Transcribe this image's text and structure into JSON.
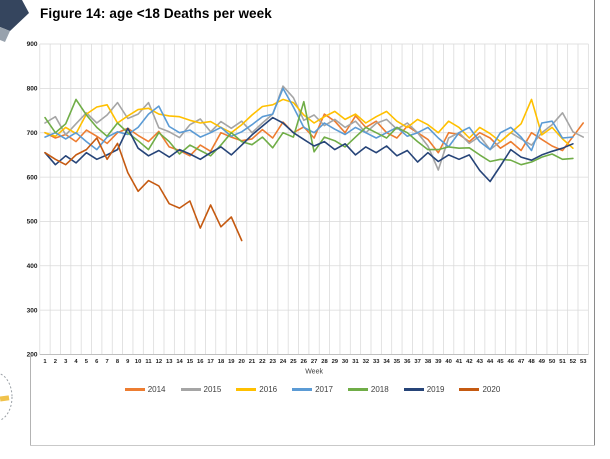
{
  "chart_data": {
    "type": "line",
    "title": "Figure 14: age <18 Deaths per week",
    "xlabel": "Week",
    "ylabel": "",
    "ylim": [
      200,
      900
    ],
    "ytick_step": 100,
    "yticks": [
      200,
      300,
      400,
      500,
      600,
      700,
      800,
      900
    ],
    "xticks": [
      1,
      2,
      3,
      4,
      5,
      6,
      7,
      8,
      9,
      10,
      11,
      12,
      13,
      14,
      15,
      16,
      17,
      18,
      19,
      20,
      21,
      22,
      23,
      24,
      25,
      26,
      27,
      28,
      29,
      30,
      31,
      32,
      33,
      34,
      35,
      36,
      37,
      38,
      39,
      40,
      41,
      42,
      43,
      44,
      45,
      46,
      47,
      48,
      49,
      50,
      51,
      52,
      53
    ],
    "grid": "both",
    "legend_position": "bottom",
    "series": [
      {
        "name": "2014",
        "color": "#ED7D31",
        "values": [
          700,
          688,
          696,
          680,
          706,
          692,
          676,
          700,
          710,
          694,
          680,
          703,
          668,
          660,
          648,
          672,
          658,
          700,
          690,
          682,
          686,
          707,
          688,
          724,
          700,
          713,
          688,
          742,
          726,
          700,
          738,
          712,
          726,
          700,
          688,
          715,
          700,
          685,
          655,
          700,
          696,
          680,
          700,
          688,
          665,
          680,
          660,
          700,
          685,
          670,
          660,
          691,
          722
        ]
      },
      {
        "name": "2015",
        "color": "#A5A5A5",
        "values": [
          722,
          736,
          695,
          720,
          745,
          722,
          740,
          768,
          732,
          742,
          768,
          711,
          702,
          689,
          718,
          731,
          702,
          725,
          710,
          726,
          700,
          722,
          742,
          805,
          779,
          728,
          740,
          716,
          730,
          712,
          726,
          700,
          721,
          730,
          708,
          722,
          700,
          670,
          616,
          688,
          700,
          676,
          692,
          662,
          680,
          700,
          686,
          672,
          700,
          718,
          745,
          702,
          690
        ]
      },
      {
        "name": "2016",
        "color": "#FFC000",
        "values": [
          700,
          692,
          712,
          698,
          742,
          758,
          763,
          722,
          738,
          752,
          755,
          742,
          738,
          736,
          728,
          722,
          725,
          712,
          700,
          718,
          740,
          759,
          763,
          775,
          768,
          740,
          722,
          736,
          748,
          730,
          742,
          722,
          736,
          748,
          726,
          712,
          730,
          718,
          700,
          726,
          712,
          688,
          712,
          698,
          680,
          700,
          720,
          775,
          695,
          712,
          686,
          665
        ]
      },
      {
        "name": "2017",
        "color": "#5B9BD5",
        "values": [
          690,
          700,
          686,
          700,
          680,
          662,
          690,
          702,
          696,
          712,
          742,
          760,
          714,
          700,
          706,
          690,
          700,
          712,
          692,
          702,
          718,
          736,
          742,
          800,
          758,
          712,
          700,
          722,
          708,
          696,
          712,
          700,
          688,
          700,
          712,
          692,
          700,
          712,
          688,
          668,
          700,
          712,
          680,
          662,
          700,
          712,
          690,
          660,
          722,
          726,
          688,
          690
        ]
      },
      {
        "name": "2018",
        "color": "#70AD47",
        "values": [
          734,
          700,
          720,
          775,
          740,
          712,
          692,
          722,
          700,
          682,
          662,
          700,
          680,
          652,
          672,
          660,
          648,
          672,
          700,
          680,
          673,
          690,
          666,
          700,
          690,
          770,
          657,
          690,
          682,
          668,
          690,
          712,
          700,
          688,
          712,
          700,
          680,
          662,
          662,
          668,
          665,
          666,
          650,
          635,
          640,
          638,
          628,
          634,
          645,
          652,
          640,
          642
        ]
      },
      {
        "name": "2019",
        "color": "#264478",
        "values": [
          655,
          628,
          648,
          632,
          655,
          640,
          650,
          662,
          710,
          665,
          648,
          660,
          645,
          662,
          652,
          640,
          655,
          668,
          650,
          672,
          695,
          715,
          734,
          722,
          700,
          685,
          670,
          680,
          662,
          675,
          650,
          668,
          655,
          670,
          648,
          660,
          634,
          655,
          635,
          650,
          640,
          650,
          615,
          590,
          625,
          662,
          645,
          638,
          650,
          658,
          665,
          675
        ]
      },
      {
        "name": "2020",
        "color": "#C55A11",
        "values": [
          655,
          640,
          628,
          650,
          662,
          688,
          640,
          676,
          610,
          568,
          592,
          580,
          540,
          530,
          546,
          485,
          537,
          488,
          510,
          457
        ]
      }
    ]
  }
}
